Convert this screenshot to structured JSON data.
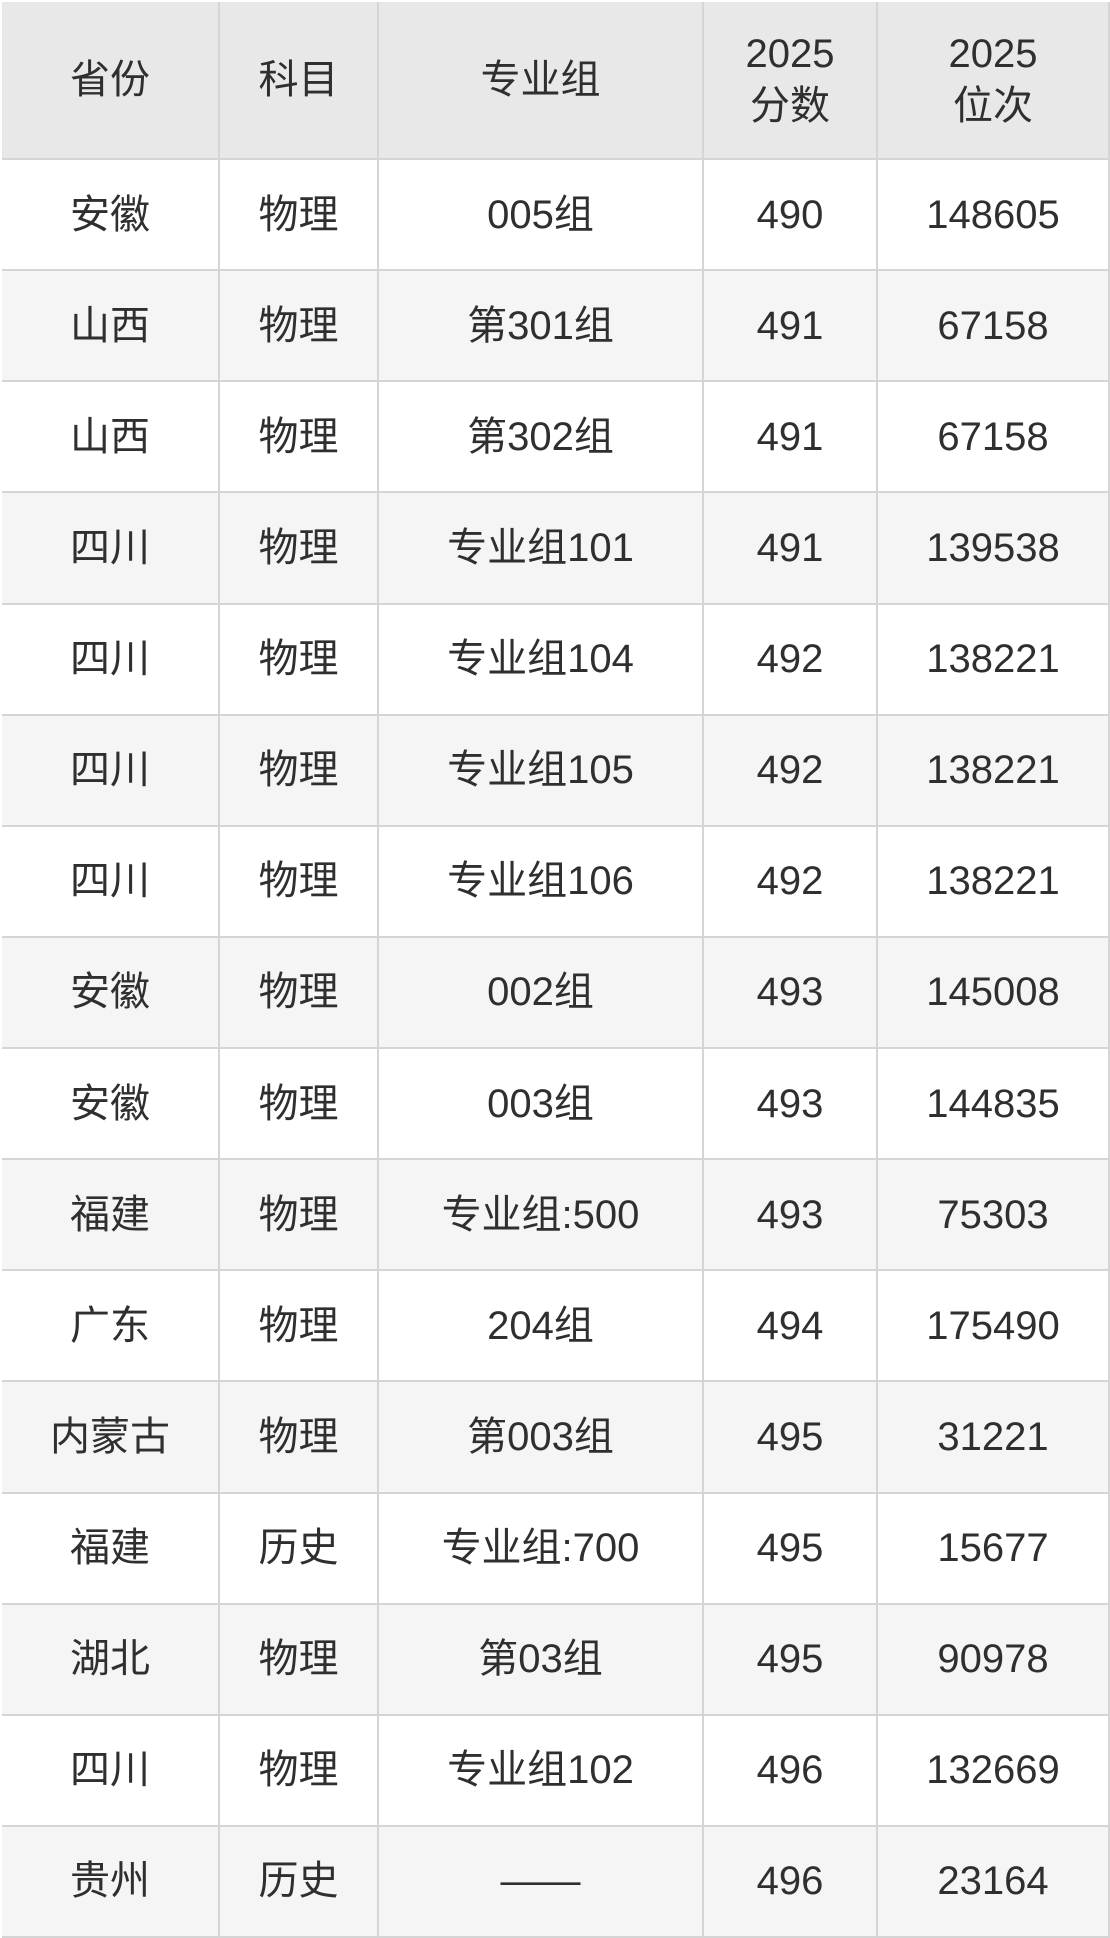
{
  "chart_data": {
    "type": "table",
    "columns": [
      "省份",
      "科目",
      "专业组",
      "2025分数",
      "2025位次"
    ],
    "header_lines": [
      "省份",
      "科目",
      "专业组",
      "2025\n分数",
      "2025\n位次"
    ],
    "rows": [
      [
        "安徽",
        "物理",
        "005组",
        "490",
        "148605"
      ],
      [
        "山西",
        "物理",
        "第301组",
        "491",
        "67158"
      ],
      [
        "山西",
        "物理",
        "第302组",
        "491",
        "67158"
      ],
      [
        "四川",
        "物理",
        "专业组101",
        "491",
        "139538"
      ],
      [
        "四川",
        "物理",
        "专业组104",
        "492",
        "138221"
      ],
      [
        "四川",
        "物理",
        "专业组105",
        "492",
        "138221"
      ],
      [
        "四川",
        "物理",
        "专业组106",
        "492",
        "138221"
      ],
      [
        "安徽",
        "物理",
        "002组",
        "493",
        "145008"
      ],
      [
        "安徽",
        "物理",
        "003组",
        "493",
        "144835"
      ],
      [
        "福建",
        "物理",
        "专业组:500",
        "493",
        "75303"
      ],
      [
        "广东",
        "物理",
        "204组",
        "494",
        "175490"
      ],
      [
        "内蒙古",
        "物理",
        "第003组",
        "495",
        "31221"
      ],
      [
        "福建",
        "历史",
        "专业组:700",
        "495",
        "15677"
      ],
      [
        "湖北",
        "物理",
        "第03组",
        "495",
        "90978"
      ],
      [
        "四川",
        "物理",
        "专业组102",
        "496",
        "132669"
      ],
      [
        "贵州",
        "历史",
        "——",
        "496",
        "23164"
      ]
    ],
    "layout": {
      "grid": true,
      "zebra_striping": true
    }
  },
  "colors": {
    "header_bg": "#e8e8e8",
    "row_bg": "#ffffff",
    "row_alt_bg": "#f5f5f5",
    "grid_line": "#d5d5d5",
    "text": "#2f2f2f"
  }
}
